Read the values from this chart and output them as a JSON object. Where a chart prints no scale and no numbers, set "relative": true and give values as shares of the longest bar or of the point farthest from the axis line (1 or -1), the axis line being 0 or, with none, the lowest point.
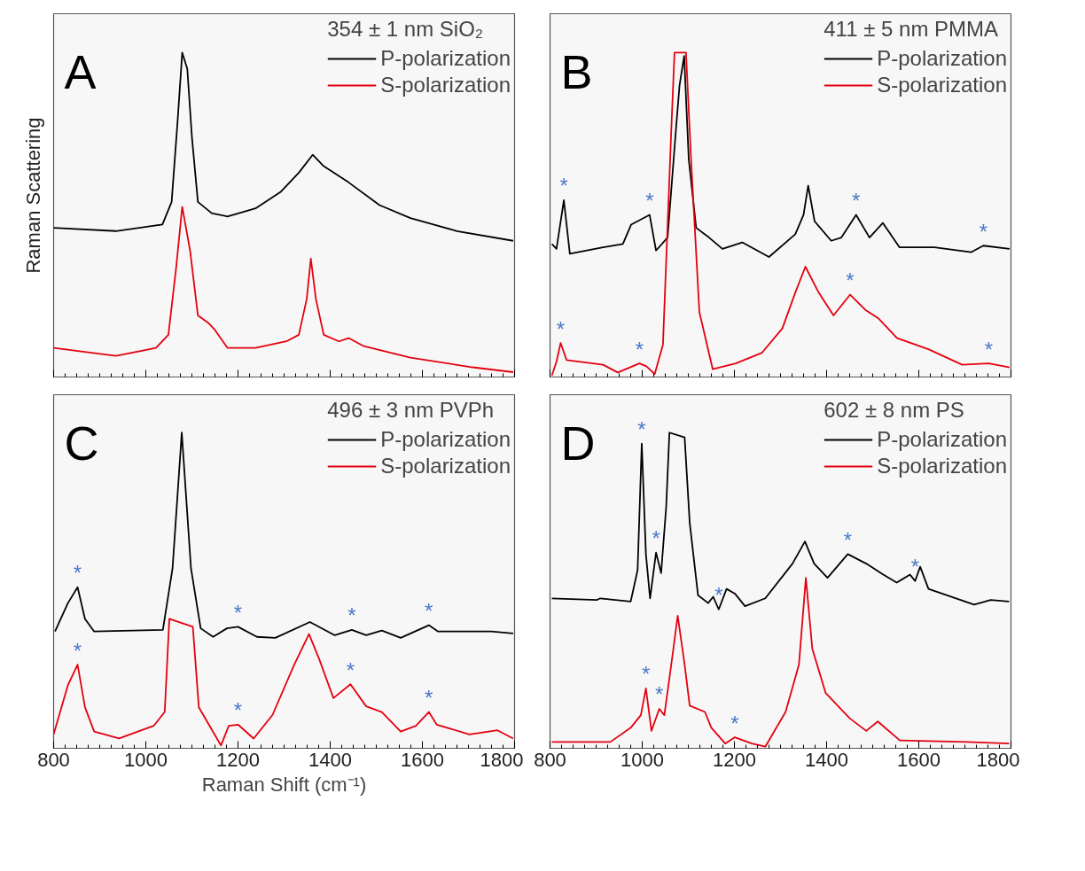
{
  "chart_data": [
    {
      "type": "line",
      "title": "A",
      "legend_title": "354 ± 1 nm SiO₂",
      "ylabel": "Raman Scattering",
      "relative": true,
      "xlim": [
        800,
        1800
      ],
      "xticks": [
        800,
        1000,
        1200,
        1400,
        1600,
        1800
      ],
      "tick_labels": false,
      "legend": "top right",
      "grid": false,
      "series": [
        {
          "name": "P-polarization",
          "color": "#000000",
          "x": [
            800,
            935,
            1036,
            1056,
            1069,
            1079,
            1090,
            1100,
            1113,
            1143,
            1177,
            1238,
            1292,
            1332,
            1362,
            1386,
            1440,
            1507,
            1574,
            1675,
            1797
          ],
          "values": [
            0.46,
            0.45,
            0.47,
            0.54,
            0.79,
            1.0,
            0.95,
            0.74,
            0.54,
            0.505,
            0.495,
            0.52,
            0.57,
            0.63,
            0.685,
            0.65,
            0.6,
            0.53,
            0.49,
            0.45,
            0.42
          ]
        },
        {
          "name": "S-polarization",
          "color": "#e3000f",
          "x": [
            800,
            935,
            989,
            1022,
            1049,
            1066,
            1079,
            1096,
            1113,
            1137,
            1150,
            1177,
            1238,
            1305,
            1332,
            1349,
            1358,
            1369,
            1386,
            1419,
            1440,
            1473,
            1574,
            1709,
            1797
          ],
          "values": [
            0.09,
            0.065,
            0.08,
            0.09,
            0.13,
            0.34,
            0.525,
            0.39,
            0.19,
            0.165,
            0.145,
            0.09,
            0.09,
            0.11,
            0.13,
            0.24,
            0.365,
            0.24,
            0.13,
            0.11,
            0.12,
            0.095,
            0.06,
            0.03,
            0.015
          ]
        }
      ]
    },
    {
      "type": "line",
      "title": "B",
      "legend_title": "411 ± 5 nm PMMA",
      "relative": true,
      "xlim": [
        800,
        1800
      ],
      "xticks": [
        800,
        1000,
        1200,
        1400,
        1600,
        1800
      ],
      "tick_labels": false,
      "legend": "top right",
      "grid": false,
      "annotations": [
        {
          "text": "*",
          "x": 830,
          "y": 0.545
        },
        {
          "text": "*",
          "x": 1016,
          "y": 0.5
        },
        {
          "text": "*",
          "x": 1464,
          "y": 0.5
        },
        {
          "text": "*",
          "x": 1740,
          "y": 0.405
        },
        {
          "text": "*",
          "x": 823,
          "y": 0.105
        },
        {
          "text": "*",
          "x": 994,
          "y": 0.042
        },
        {
          "text": "*",
          "x": 1451,
          "y": 0.254
        },
        {
          "text": "*",
          "x": 1752,
          "y": 0.042
        }
      ],
      "series": [
        {
          "name": "P-polarization",
          "color": "#000000",
          "x": [
            804,
            814,
            830,
            843,
            915,
            958,
            976,
            1016,
            1030,
            1055,
            1073,
            1081,
            1091,
            1101,
            1117,
            1145,
            1174,
            1217,
            1275,
            1332,
            1350,
            1360,
            1374,
            1410,
            1432,
            1464,
            1493,
            1522,
            1558,
            1634,
            1714,
            1740,
            1797
          ],
          "values": [
            0.41,
            0.395,
            0.545,
            0.38,
            0.4,
            0.41,
            0.47,
            0.5,
            0.39,
            0.43,
            0.76,
            0.9,
            0.99,
            0.67,
            0.46,
            0.43,
            0.395,
            0.415,
            0.37,
            0.44,
            0.5,
            0.59,
            0.48,
            0.42,
            0.43,
            0.5,
            0.43,
            0.475,
            0.4,
            0.4,
            0.385,
            0.405,
            0.395
          ]
        },
        {
          "name": "S-polarization",
          "color": "#e3000f",
          "x": [
            804,
            814,
            823,
            836,
            915,
            947,
            994,
            1009,
            1027,
            1045,
            1063,
            1070,
            1095,
            1106,
            1124,
            1153,
            1203,
            1260,
            1304,
            1332,
            1354,
            1383,
            1415,
            1451,
            1484,
            1513,
            1553,
            1622,
            1694,
            1752,
            1797
          ],
          "values": [
            0.005,
            0.047,
            0.105,
            0.052,
            0.038,
            0.014,
            0.042,
            0.033,
            0.009,
            0.1,
            0.76,
            1.0,
            1.0,
            0.67,
            0.2,
            0.024,
            0.042,
            0.075,
            0.15,
            0.26,
            0.34,
            0.26,
            0.19,
            0.254,
            0.207,
            0.18,
            0.12,
            0.085,
            0.038,
            0.042,
            0.03
          ]
        }
      ]
    },
    {
      "type": "line",
      "title": "C",
      "legend_title": "496 ± 3 nm PVPh",
      "xlabel": "Raman Shift (cm⁻¹)",
      "relative": true,
      "xlim": [
        800,
        1800
      ],
      "xticks": [
        800,
        1000,
        1200,
        1400,
        1600,
        1800
      ],
      "tick_labels": "x",
      "legend": "top right",
      "grid": false,
      "annotations": [
        {
          "text": "*",
          "x": 852,
          "y": 0.51
        },
        {
          "text": "*",
          "x": 1200,
          "y": 0.385
        },
        {
          "text": "*",
          "x": 1447,
          "y": 0.375
        },
        {
          "text": "*",
          "x": 1614,
          "y": 0.39
        },
        {
          "text": "*",
          "x": 852,
          "y": 0.265
        },
        {
          "text": "*",
          "x": 1200,
          "y": 0.075
        },
        {
          "text": "*",
          "x": 1444,
          "y": 0.203
        },
        {
          "text": "*",
          "x": 1614,
          "y": 0.115
        }
      ],
      "series": [
        {
          "name": "P-polarization",
          "color": "#000000",
          "x": [
            803,
            831,
            852,
            868,
            888,
            1037,
            1058,
            1078,
            1098,
            1119,
            1146,
            1176,
            1200,
            1241,
            1281,
            1356,
            1410,
            1447,
            1478,
            1512,
            1553,
            1614,
            1634,
            1749,
            1797
          ],
          "values": [
            0.37,
            0.46,
            0.51,
            0.41,
            0.37,
            0.375,
            0.57,
            1.0,
            0.57,
            0.38,
            0.353,
            0.38,
            0.385,
            0.353,
            0.35,
            0.4,
            0.358,
            0.375,
            0.358,
            0.373,
            0.35,
            0.39,
            0.37,
            0.37,
            0.364
          ]
        },
        {
          "name": "S-polarization",
          "color": "#e3000f",
          "x": [
            800,
            831,
            852,
            868,
            888,
            942,
            1017,
            1041,
            1051,
            1102,
            1115,
            1163,
            1180,
            1200,
            1234,
            1275,
            1322,
            1354,
            1376,
            1407,
            1444,
            1478,
            1512,
            1553,
            1586,
            1614,
            1631,
            1702,
            1763,
            1797
          ],
          "values": [
            0.044,
            0.2,
            0.265,
            0.13,
            0.053,
            0.031,
            0.071,
            0.115,
            0.41,
            0.385,
            0.13,
            0.009,
            0.071,
            0.075,
            0.031,
            0.106,
            0.265,
            0.362,
            0.283,
            0.159,
            0.203,
            0.133,
            0.115,
            0.053,
            0.071,
            0.115,
            0.075,
            0.044,
            0.057,
            0.031
          ]
        }
      ]
    },
    {
      "type": "line",
      "title": "D",
      "legend_title": "602 ± 8 nm PS",
      "relative": true,
      "xlim": [
        800,
        1800
      ],
      "xticks": [
        800,
        1000,
        1200,
        1400,
        1600,
        1800
      ],
      "tick_labels": "x",
      "legend": "top right",
      "grid": false,
      "annotations": [
        {
          "text": "*",
          "x": 999,
          "y": 0.965
        },
        {
          "text": "*",
          "x": 1030,
          "y": 0.62
        },
        {
          "text": "*",
          "x": 1166,
          "y": 0.44
        },
        {
          "text": "*",
          "x": 1446,
          "y": 0.615
        },
        {
          "text": "*",
          "x": 1592,
          "y": 0.53
        },
        {
          "text": "*",
          "x": 1008,
          "y": 0.19
        },
        {
          "text": "*",
          "x": 1037,
          "y": 0.125
        },
        {
          "text": "*",
          "x": 1201,
          "y": 0.035
        }
      ],
      "series": [
        {
          "name": "P-polarization",
          "color": "#000000",
          "x": [
            804,
            902,
            909,
            975,
            990,
            999,
            1008,
            1017,
            1030,
            1041,
            1052,
            1059,
            1092,
            1103,
            1121,
            1143,
            1154,
            1166,
            1183,
            1201,
            1223,
            1267,
            1326,
            1353,
            1373,
            1402,
            1446,
            1486,
            1523,
            1552,
            1581,
            1592,
            1603,
            1621,
            1720,
            1756,
            1796
          ],
          "values": [
            0.475,
            0.47,
            0.475,
            0.465,
            0.565,
            0.965,
            0.615,
            0.475,
            0.62,
            0.555,
            0.765,
            1.0,
            0.985,
            0.715,
            0.485,
            0.46,
            0.48,
            0.44,
            0.505,
            0.49,
            0.45,
            0.475,
            0.585,
            0.655,
            0.585,
            0.54,
            0.615,
            0.585,
            0.55,
            0.525,
            0.55,
            0.53,
            0.575,
            0.505,
            0.455,
            0.47,
            0.465
          ]
        },
        {
          "name": "S-polarization",
          "color": "#e3000f",
          "x": [
            804,
            931,
            975,
            997,
            1008,
            1020,
            1037,
            1048,
            1063,
            1077,
            1092,
            1103,
            1136,
            1150,
            1180,
            1201,
            1238,
            1267,
            1311,
            1340,
            1355,
            1369,
            1398,
            1450,
            1486,
            1511,
            1559,
            1705,
            1796
          ],
          "values": [
            0.02,
            0.02,
            0.065,
            0.105,
            0.19,
            0.055,
            0.125,
            0.105,
            0.265,
            0.42,
            0.265,
            0.135,
            0.115,
            0.065,
            0.015,
            0.035,
            0.015,
            0.005,
            0.115,
            0.265,
            0.54,
            0.315,
            0.175,
            0.095,
            0.055,
            0.085,
            0.025,
            0.02,
            0.015
          ]
        }
      ]
    }
  ]
}
